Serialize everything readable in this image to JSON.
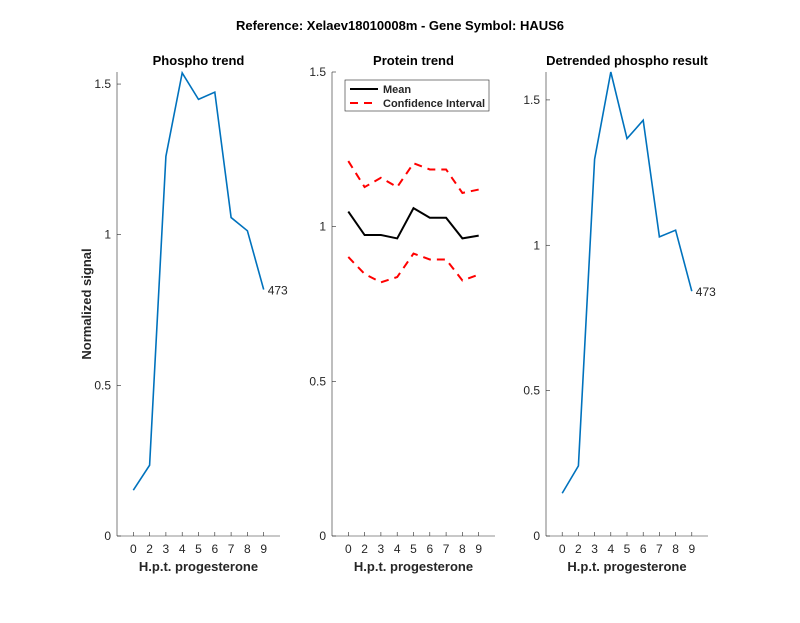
{
  "chart_data": {
    "suptitle": "Reference:  Xelaev18010008m - Gene Symbol:  HAUS6",
    "panels": [
      {
        "type": "line",
        "title": "Phospho trend",
        "xlabel": "H.p.t. progesterone",
        "ylabel": "Normalized signal",
        "categories": [
          "0",
          "2",
          "3",
          "4",
          "5",
          "6",
          "7",
          "8",
          "9"
        ],
        "yticks": [
          "0",
          "0.5",
          "1",
          "1.5"
        ],
        "ylim": [
          0,
          1.54
        ],
        "series": [
          {
            "values": [
              0.152,
              0.235,
              1.26,
              1.537,
              1.449,
              1.473,
              1.057,
              1.013,
              0.818
            ],
            "color": "#0072BD",
            "style": "solid"
          }
        ],
        "annotation": "473"
      },
      {
        "type": "line",
        "title": "Protein trend",
        "xlabel": "H.p.t. progesterone",
        "ylabel": "",
        "categories": [
          "0",
          "2",
          "3",
          "4",
          "5",
          "6",
          "7",
          "8",
          "9"
        ],
        "yticks": [
          "0",
          "0.5",
          "1",
          "1.5"
        ],
        "ylim": [
          0,
          1.5
        ],
        "legend_placement": "top-left",
        "series": [
          {
            "name": "Mean",
            "values": [
              1.049,
              0.973,
              0.973,
              0.962,
              1.06,
              1.029,
              1.029,
              0.962,
              0.971
            ],
            "color": "#000000",
            "style": "solid"
          },
          {
            "name": "Confidence Interval",
            "values": [
              1.212,
              1.128,
              1.158,
              1.128,
              1.205,
              1.185,
              1.185,
              1.109,
              1.12
            ],
            "color": "#FF0000",
            "style": "dashed"
          },
          {
            "values": [
              0.902,
              0.847,
              0.82,
              0.837,
              0.913,
              0.894,
              0.894,
              0.826,
              0.845
            ],
            "color": "#FF0000",
            "style": "dashed"
          }
        ]
      },
      {
        "type": "line",
        "title": "Detrended phospho result",
        "xlabel": "H.p.t. progesterone",
        "ylabel": "",
        "categories": [
          "0",
          "2",
          "3",
          "4",
          "5",
          "6",
          "7",
          "8",
          "9"
        ],
        "yticks": [
          "0",
          "0.5",
          "1",
          "1.5"
        ],
        "ylim": [
          0,
          1.596
        ],
        "series": [
          {
            "values": [
              0.147,
              0.241,
              1.296,
              1.596,
              1.367,
              1.43,
              1.029,
              1.052,
              0.842
            ],
            "color": "#0072BD",
            "style": "solid"
          }
        ],
        "annotation": "473"
      }
    ]
  }
}
